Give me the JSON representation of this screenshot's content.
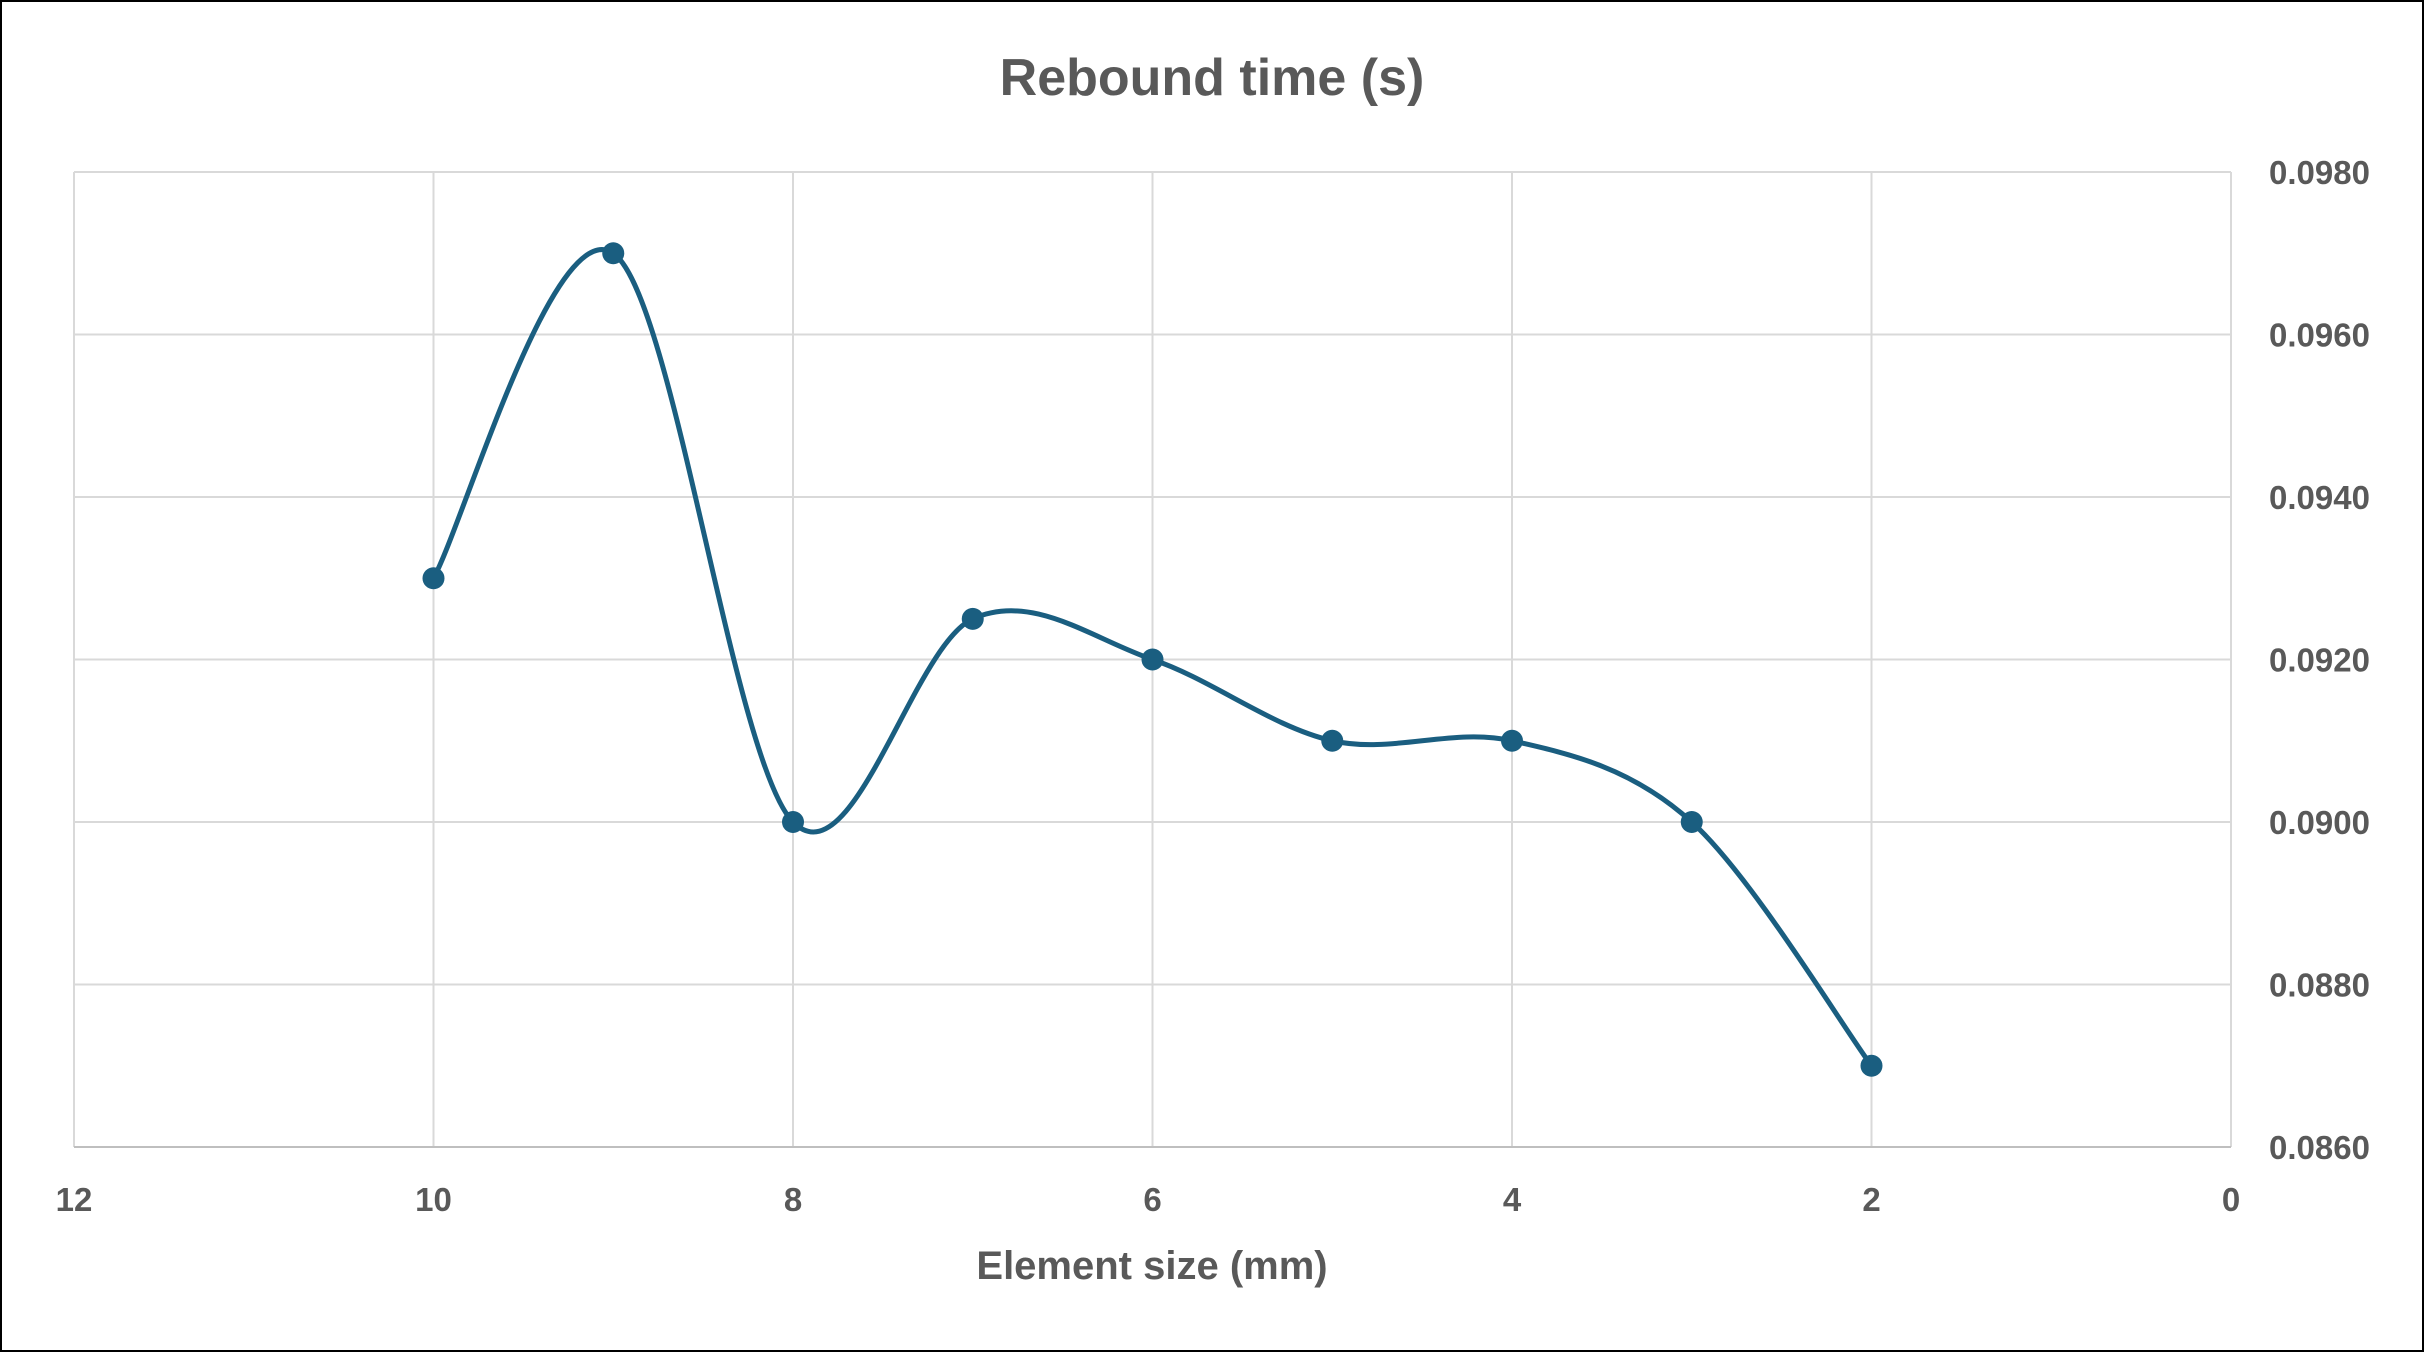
{
  "chart_data": {
    "type": "scatter",
    "title": "Rebound time (s)",
    "xlabel": "Element size (mm)",
    "ylabel": "",
    "x_reversed": true,
    "y_axis_position": "right",
    "xlim": [
      0,
      12
    ],
    "ylim": [
      0.086,
      0.098
    ],
    "x_ticks": [
      "12",
      "10",
      "8",
      "6",
      "4",
      "2",
      "0"
    ],
    "x_tick_values": [
      12,
      10,
      8,
      6,
      4,
      2,
      0
    ],
    "y_ticks": [
      "0.0860",
      "0.0880",
      "0.0900",
      "0.0920",
      "0.0940",
      "0.0960",
      "0.0980"
    ],
    "y_tick_values": [
      0.086,
      0.088,
      0.09,
      0.092,
      0.094,
      0.096,
      0.098
    ],
    "grid": true,
    "smoothed_line": true,
    "series": [
      {
        "color": "#1a5e80",
        "x": [
          10,
          9,
          8,
          7,
          6,
          5,
          4,
          3,
          2
        ],
        "y": [
          0.093,
          0.097,
          0.09,
          0.0925,
          0.092,
          0.091,
          0.091,
          0.09,
          0.087
        ]
      }
    ]
  }
}
